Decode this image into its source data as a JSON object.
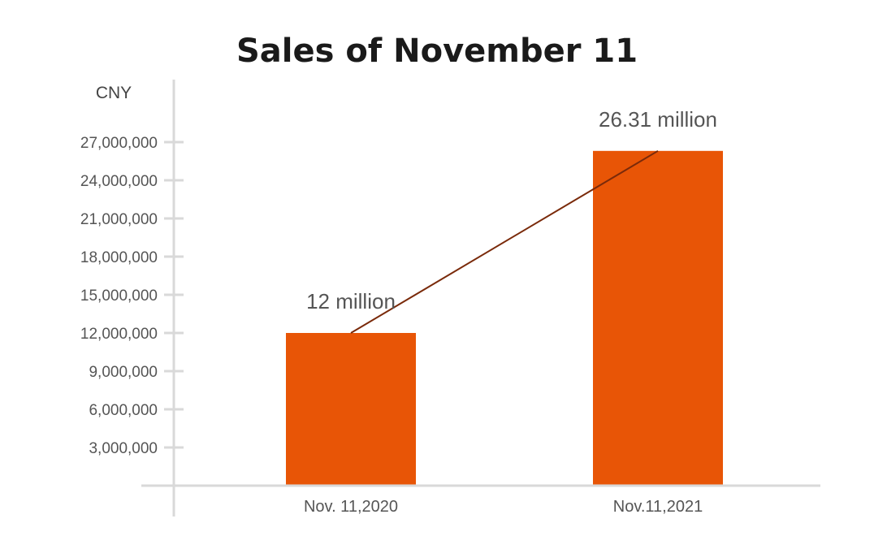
{
  "chart_data": {
    "type": "bar",
    "title": "Sales of November 11",
    "ylabel": "CNY",
    "xlabel": "",
    "categories": [
      "Nov. 11,2020",
      "Nov.11,2021"
    ],
    "values": [
      12000000,
      26310000
    ],
    "data_labels": [
      "12 million",
      "26.31 million"
    ],
    "y_ticks": [
      3000000,
      6000000,
      9000000,
      12000000,
      15000000,
      18000000,
      21000000,
      24000000,
      27000000
    ],
    "y_tick_labels": [
      "3,000,000",
      "6,000,000",
      "9,000,000",
      "12,000,000",
      "15,000,000",
      "18,000,000",
      "21,000,000",
      "24,000,000",
      "27,000,000"
    ],
    "ylim": [
      0,
      32000000
    ],
    "trend_line": true,
    "grid": false,
    "colors": {
      "bar": "#E85506",
      "trend": "#7A2A0A",
      "axis": "#D9D9D9"
    }
  }
}
